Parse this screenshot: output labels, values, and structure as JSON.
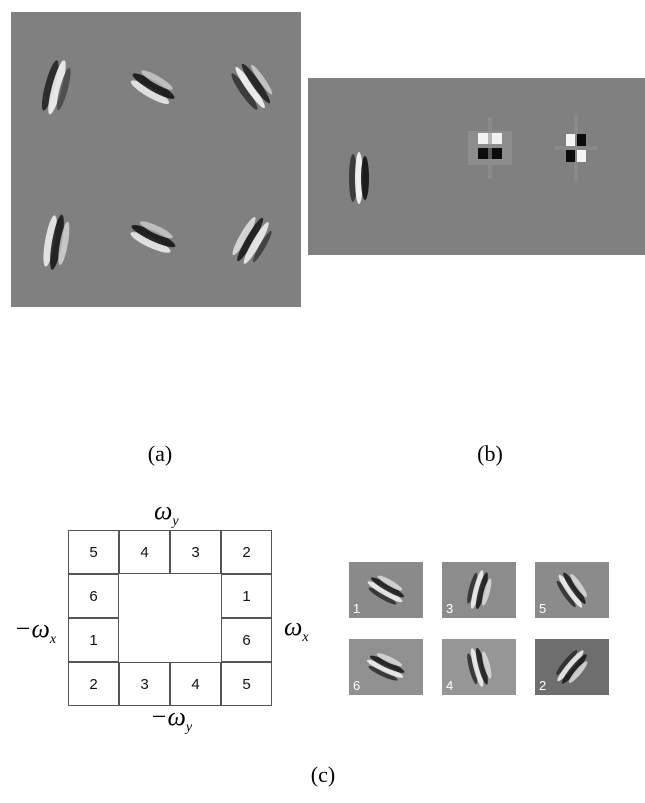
{
  "captions": {
    "a": "(a)",
    "b": "(b)",
    "c": "(c)"
  },
  "axes": {
    "top": "ω",
    "top_sub": "y",
    "bottom": "−ω",
    "bottom_sub": "y",
    "right": "ω",
    "right_sub": "x",
    "left": "−ω",
    "left_sub": "x"
  },
  "frequency_grid": {
    "cells": [
      "5",
      "4",
      "3",
      "2",
      "6",
      "1",
      "1",
      "6",
      "2",
      "3",
      "4",
      "5"
    ]
  },
  "thumbnails": [
    {
      "label": "1",
      "angle": -60,
      "bg": "#8a8a8a"
    },
    {
      "label": "3",
      "angle": 15,
      "bg": "#8c8c8c"
    },
    {
      "label": "5",
      "angle": -35,
      "bg": "#8b8b8b"
    },
    {
      "label": "6",
      "angle": -65,
      "bg": "#909090"
    },
    {
      "label": "4",
      "angle": -15,
      "bg": "#969696"
    },
    {
      "label": "2",
      "angle": 40,
      "bg": "#6e6e6e"
    }
  ],
  "colors": {
    "panel_gray": "#808080"
  }
}
